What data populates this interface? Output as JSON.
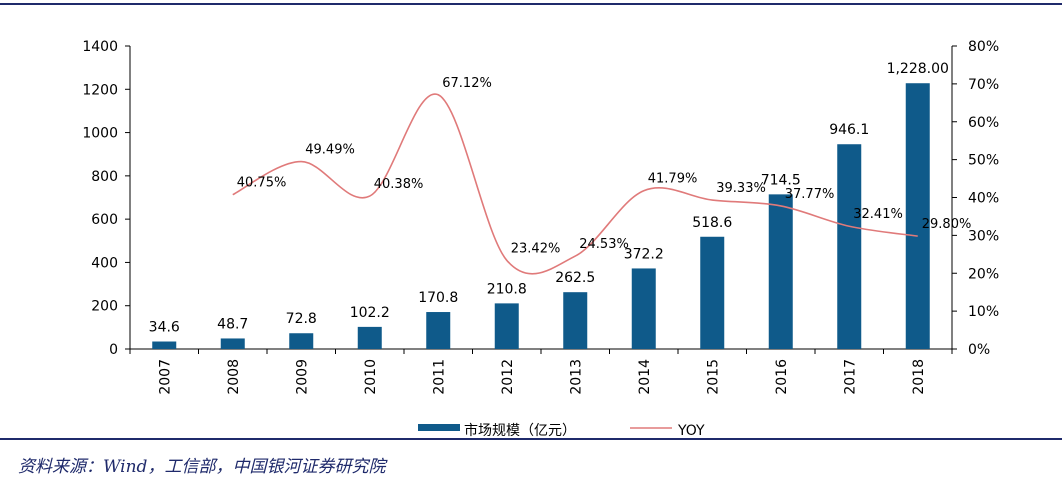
{
  "chart_data": {
    "type": "bar",
    "categories": [
      "2007",
      "2008",
      "2009",
      "2010",
      "2011",
      "2012",
      "2013",
      "2014",
      "2015",
      "2016",
      "2017",
      "2018"
    ],
    "series": [
      {
        "name": "市场规模（亿元）",
        "type": "bar",
        "axis": "left",
        "values": [
          34.6,
          48.7,
          72.8,
          102.2,
          170.8,
          210.8,
          262.5,
          372.2,
          518.6,
          714.5,
          946.1,
          1228.0
        ],
        "labels": [
          "34.6",
          "48.7",
          "72.8",
          "102.2",
          "170.8",
          "210.8",
          "262.5",
          "372.2",
          "518.6",
          "714.5",
          "946.1",
          "1,228.00"
        ],
        "color": "#0f5a8a"
      },
      {
        "name": "YOY",
        "type": "line",
        "axis": "right",
        "values": [
          null,
          40.75,
          49.49,
          40.38,
          67.12,
          23.42,
          24.53,
          41.79,
          39.33,
          37.77,
          32.41,
          29.8
        ],
        "labels": [
          "",
          "40.75%",
          "49.49%",
          "40.38%",
          "67.12%",
          "23.42%",
          "24.53%",
          "41.79%",
          "39.33%",
          "37.77%",
          "32.41%",
          "29.80%"
        ],
        "color": "#e07a7a"
      }
    ],
    "y_left": {
      "min": 0,
      "max": 1400,
      "ticks": [
        "0",
        "200",
        "400",
        "600",
        "800",
        "1000",
        "1200",
        "1400"
      ]
    },
    "y_right": {
      "min": 0,
      "max": 80,
      "ticks": [
        "0%",
        "10%",
        "20%",
        "30%",
        "40%",
        "50%",
        "60%",
        "70%",
        "80%"
      ]
    },
    "legend": {
      "position": "bottom",
      "items": [
        "市场规模（亿元）",
        "YOY"
      ]
    },
    "grid": false
  },
  "source": "资料来源：Wind，工信部，中国银河证券研究院"
}
